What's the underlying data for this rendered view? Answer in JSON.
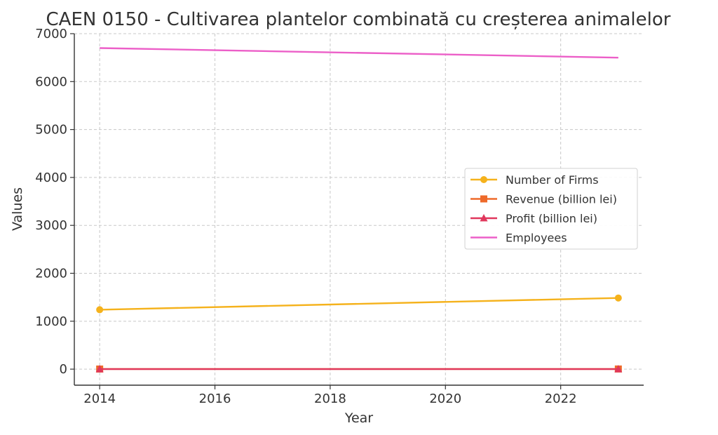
{
  "chart_data": {
    "type": "line",
    "title": "CAEN 0150 - Cultivarea plantelor combinată cu creșterea animalelor",
    "xlabel": "Year",
    "ylabel": "Values",
    "x": [
      2014,
      2023
    ],
    "xlim": [
      2013.56,
      2023.44
    ],
    "ylim": [
      -335,
      7000
    ],
    "xticks": [
      "2014",
      "2016",
      "2018",
      "2020",
      "2022"
    ],
    "yticks": [
      "0",
      "1000",
      "2000",
      "3000",
      "4000",
      "5000",
      "6000",
      "7000"
    ],
    "grid": true,
    "legend_position": "center-right",
    "series": [
      {
        "name": "Number of Firms",
        "values": [
          1240,
          1485
        ],
        "color": "#f5b21c",
        "marker": "circle"
      },
      {
        "name": "Revenue (billion lei)",
        "values": [
          2,
          3
        ],
        "color": "#ee6a2a",
        "marker": "square"
      },
      {
        "name": "Profit (billion lei)",
        "values": [
          0.2,
          0.3
        ],
        "color": "#e0375c",
        "marker": "triangle"
      },
      {
        "name": "Employees",
        "values": [
          6700,
          6500
        ],
        "color": "#ec5fc8",
        "marker": "none"
      }
    ]
  }
}
